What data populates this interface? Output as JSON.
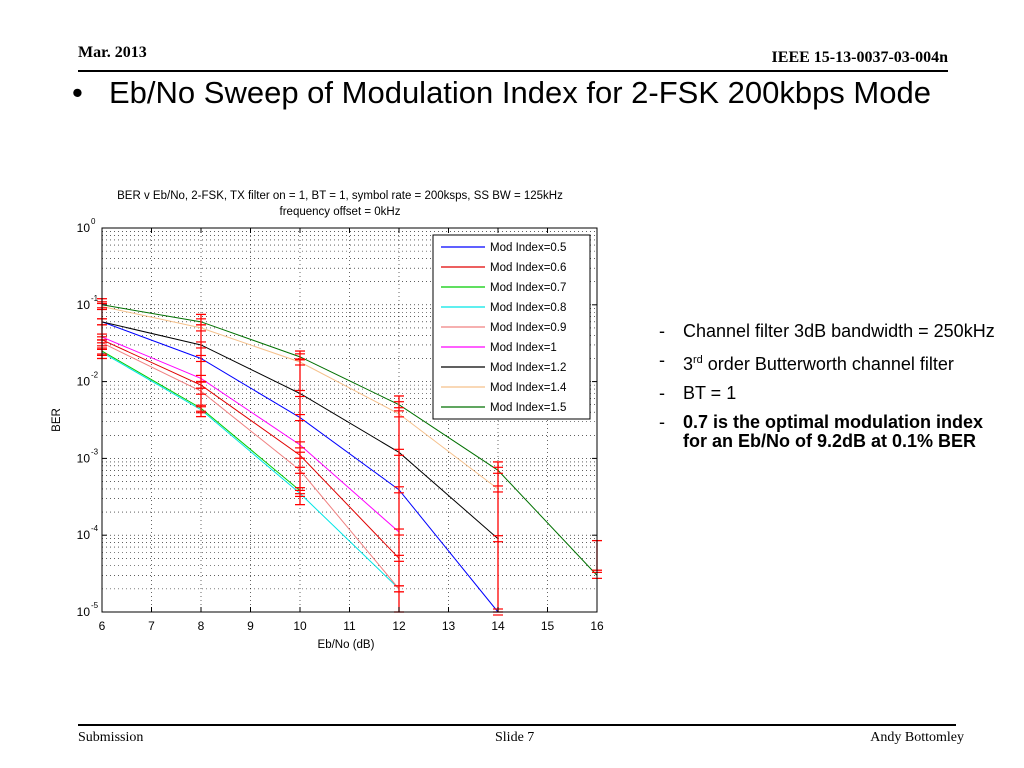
{
  "header": {
    "date": "Mar.  2013",
    "doc_id": "IEEE 15-13-0037-03-004n"
  },
  "slide_title": {
    "bullet": "•",
    "text": "Eb/No Sweep of Modulation Index for 2-FSK 200kbps Mode"
  },
  "notes": [
    {
      "dash": "-",
      "text": "Channel filter 3dB bandwidth =  250kHz",
      "bold": false
    },
    {
      "dash": "-",
      "prefix": "3",
      "sup": "rd",
      "text": " order Butterworth channel filter",
      "bold": false
    },
    {
      "dash": "-",
      "text": "BT = 1",
      "bold": false
    },
    {
      "dash": "-",
      "text": "0.7 is the optimal modulation index for an Eb/No of 9.2dB at 0.1% BER",
      "bold": true
    }
  ],
  "footer": {
    "left": "Submission",
    "center": "Slide 7",
    "right": "Andy Bottomley"
  },
  "chart_data": {
    "type": "line",
    "title": "BER v Eb/No, 2-FSK, TX filter on = 1, BT = 1, symbol rate = 200ksps, SS BW = 125kHz",
    "subtitle": "frequency offset = 0kHz",
    "xlabel": "Eb/No (dB)",
    "ylabel": "BER",
    "xlim": [
      6,
      16
    ],
    "ylim": [
      1e-05,
      1
    ],
    "yscale": "log",
    "grid": true,
    "legend_position": "top-right",
    "x_ticks": [
      "6",
      "7",
      "8",
      "9",
      "10",
      "11",
      "12",
      "13",
      "14",
      "15",
      "16"
    ],
    "y_ticks": [
      {
        "base": "10",
        "exp": "0",
        "value": 1
      },
      {
        "base": "10",
        "exp": "-1",
        "value": 0.1
      },
      {
        "base": "10",
        "exp": "-2",
        "value": 0.01
      },
      {
        "base": "10",
        "exp": "-3",
        "value": 0.001
      },
      {
        "base": "10",
        "exp": "-4",
        "value": 0.0001
      },
      {
        "base": "10",
        "exp": "-5",
        "value": 1e-05
      }
    ],
    "series": [
      {
        "name": "Mod Index=0.5",
        "color": "#0000ff",
        "x": [
          6,
          8,
          10,
          12,
          14
        ],
        "y": [
          0.06,
          0.02,
          0.0034,
          0.00039,
          1e-05
        ]
      },
      {
        "name": "Mod Index=0.6",
        "color": "#e00000",
        "x": [
          6,
          8,
          10,
          12
        ],
        "y": [
          0.035,
          0.009,
          0.0011,
          5e-05
        ]
      },
      {
        "name": "Mod Index=0.7",
        "color": "#00cc00",
        "x": [
          6,
          8,
          10
        ],
        "y": [
          0.025,
          0.0045,
          0.00038
        ]
      },
      {
        "name": "Mod Index=0.8",
        "color": "#00e5e5",
        "x": [
          6,
          8,
          10,
          12
        ],
        "y": [
          0.024,
          0.0043,
          0.00035,
          2e-05
        ]
      },
      {
        "name": "Mod Index=0.9",
        "color": "#f08080",
        "x": [
          6,
          8,
          10,
          12
        ],
        "y": [
          0.032,
          0.0075,
          0.0007,
          2e-05
        ]
      },
      {
        "name": "Mod Index=1",
        "color": "#ff00ff",
        "x": [
          6,
          8,
          10,
          12
        ],
        "y": [
          0.038,
          0.011,
          0.0015,
          0.00011
        ]
      },
      {
        "name": "Mod Index=1.2",
        "color": "#000000",
        "x": [
          6,
          8,
          10,
          12,
          14
        ],
        "y": [
          0.06,
          0.03,
          0.007,
          0.0012,
          9e-05
        ]
      },
      {
        "name": "Mod Index=1.4",
        "color": "#f5c08a",
        "x": [
          6,
          8,
          10,
          12,
          14
        ],
        "y": [
          0.095,
          0.05,
          0.018,
          0.0038,
          0.0004
        ]
      },
      {
        "name": "Mod Index=1.5",
        "color": "#007000",
        "x": [
          6,
          8,
          10,
          12,
          14,
          16
        ],
        "y": [
          0.1,
          0.06,
          0.021,
          0.005,
          0.0007,
          3e-05
        ]
      }
    ],
    "error_bars": {
      "color": "#ff0000",
      "columns": [
        {
          "x": 6,
          "low": 0.02,
          "high": 0.12
        },
        {
          "x": 8,
          "low": 0.0035,
          "high": 0.075
        },
        {
          "x": 10,
          "low": 0.00025,
          "high": 0.025
        },
        {
          "x": 12,
          "low": 1e-05,
          "high": 0.0065
        },
        {
          "x": 14,
          "low": 1e-05,
          "high": 0.0009
        },
        {
          "x": 16,
          "low": 3.5e-05,
          "high": 8.5e-05
        }
      ]
    }
  }
}
